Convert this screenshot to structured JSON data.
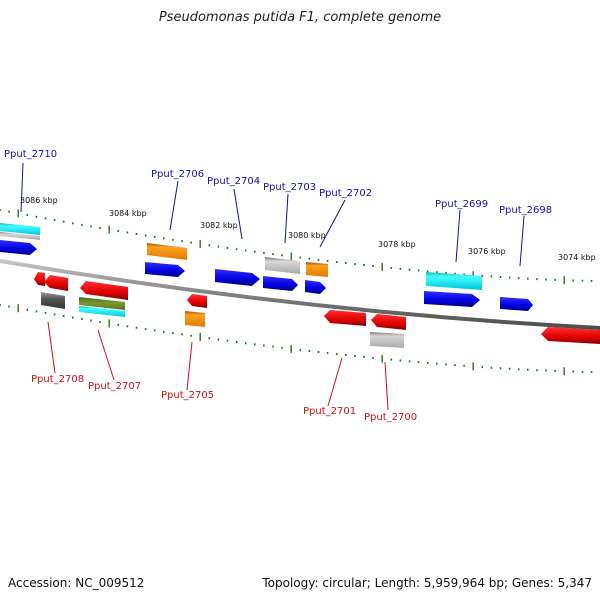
{
  "title": "Pseudomonas putida F1, complete genome",
  "footer": {
    "accession": "Accession: NC_009512",
    "topology": "Topology: circular; Length: 5,959,964 bp; Genes: 5,347"
  },
  "colors": {
    "upper_label": "#1010b0",
    "lower_label": "#cc1010",
    "tick": "#1a7a1a",
    "backbone": "#909090"
  },
  "kbp_labels": [
    "3086 kbp",
    "3084 kbp",
    "3082 kbp",
    "3080 kbp",
    "3078 kbp",
    "3076 kbp",
    "3074 kbp"
  ],
  "upper_gene_labels": [
    "Pput_2710",
    "Pput_2706",
    "Pput_2704",
    "Pput_2703",
    "Pput_2702",
    "Pput_2699",
    "Pput_2698"
  ],
  "lower_gene_labels": [
    "Pput_2708",
    "Pput_2707",
    "Pput_2705",
    "Pput_2701",
    "Pput_2700"
  ]
}
